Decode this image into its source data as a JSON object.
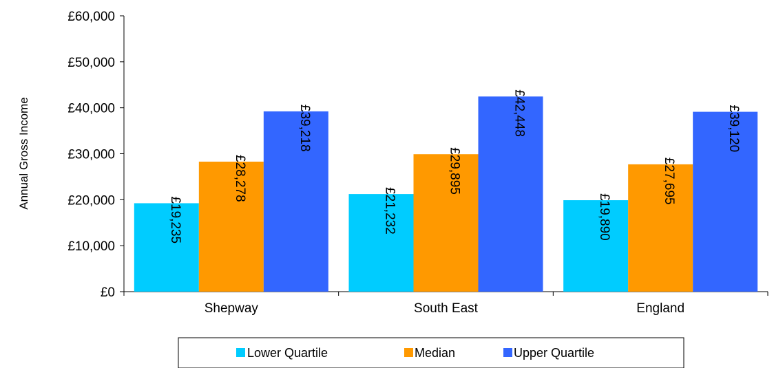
{
  "chart_data": {
    "type": "bar",
    "title": "",
    "xlabel": "",
    "ylabel": "Annual Gross Income",
    "ylim": [
      0,
      60000
    ],
    "yticks": [
      "£0",
      "£10,000",
      "£20,000",
      "£30,000",
      "£40,000",
      "£50,000",
      "£60,000"
    ],
    "ytick_values": [
      0,
      10000,
      20000,
      30000,
      40000,
      50000,
      60000
    ],
    "categories": [
      "Shepway",
      "South East",
      "England"
    ],
    "series": [
      {
        "name": "Lower Quartile",
        "color": "#00ccff",
        "values": [
          19235,
          21232,
          19890
        ],
        "labels": [
          "£19,235",
          "£21,232",
          "£19,890"
        ]
      },
      {
        "name": "Median",
        "color": "#ff9900",
        "values": [
          28278,
          29895,
          27695
        ],
        "labels": [
          "£28,278",
          "£29,895",
          "£27,695"
        ]
      },
      {
        "name": "Upper Quartile",
        "color": "#3366ff",
        "values": [
          39218,
          42448,
          39120
        ],
        "labels": [
          "£39,218",
          "£42,448",
          "£39,120"
        ]
      }
    ],
    "grid": false,
    "legend_position": "bottom"
  }
}
